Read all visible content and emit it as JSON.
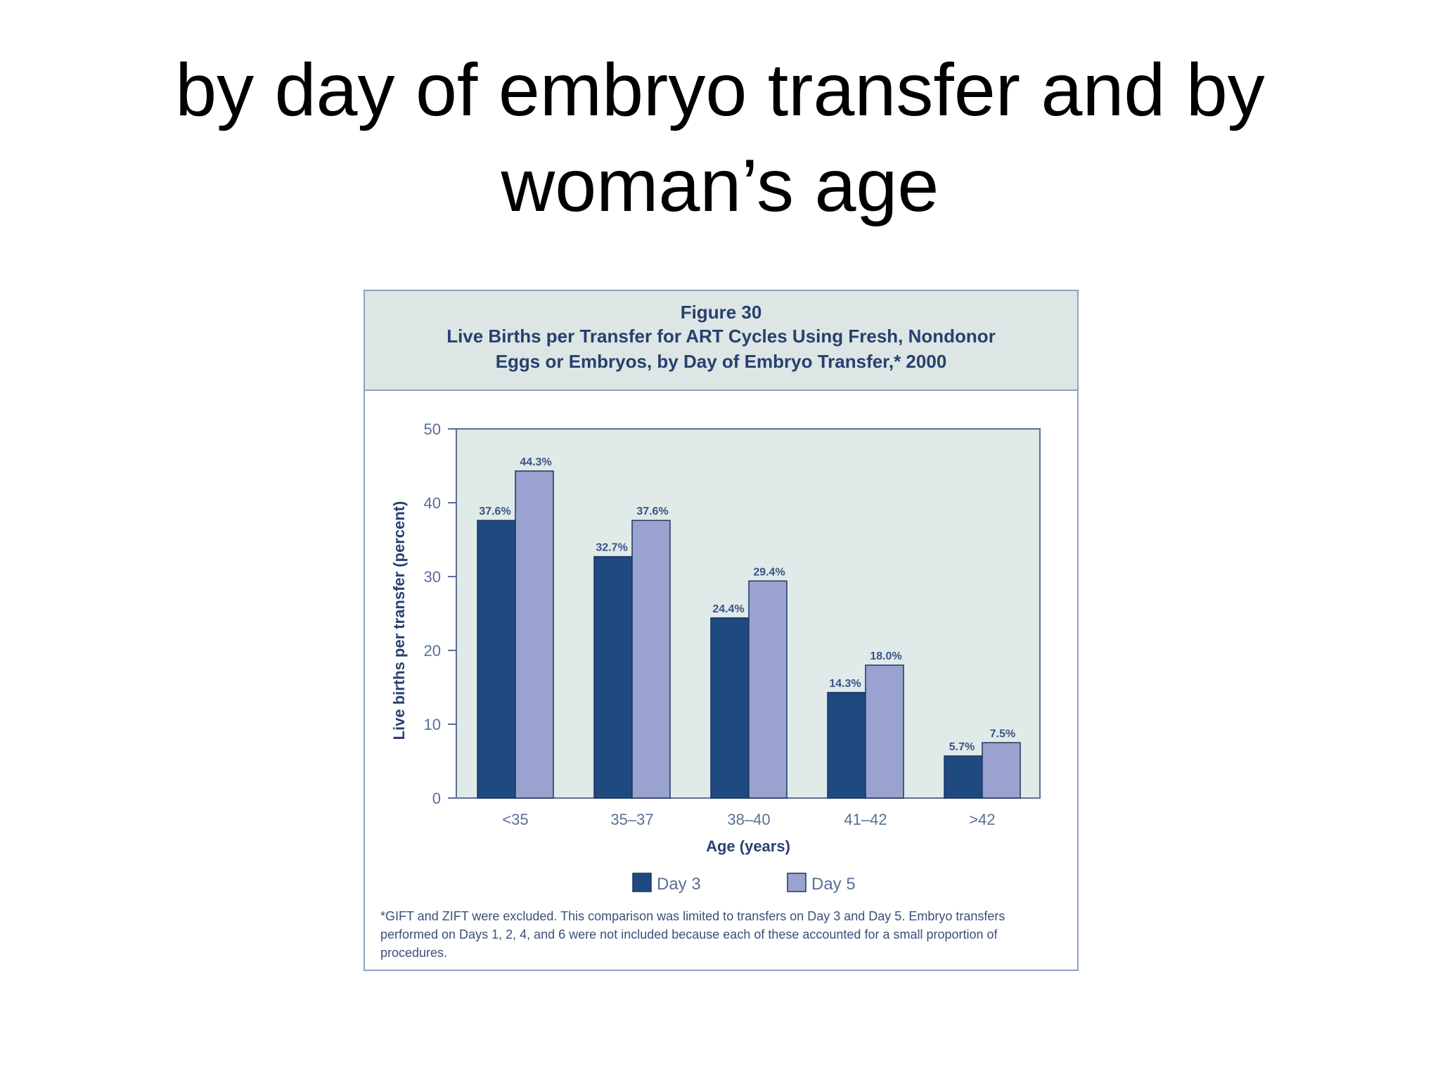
{
  "slide": {
    "title_line1": "by day of embryo transfer and by",
    "title_line2": "woman’s age"
  },
  "figure": {
    "number": "Figure 30",
    "caption_line1": "Live Births per Transfer for ART Cycles Using Fresh, Nondonor",
    "caption_line2": "Eggs or Embryos, by Day of Embryo Transfer,* 2000",
    "footnote": "*GIFT and ZIFT were excluded. This comparison was limited to transfers on Day 3 and Day 5. Embryo transfers performed on Days 1, 2, 4, and 6 were not included because each of these accounted for a small proportion of procedures."
  },
  "colors": {
    "day3": "#1e4a80",
    "day5": "#9aa3cf",
    "plot_bg": "#e0eae8",
    "axis": "#5a6f96"
  },
  "chart_data": {
    "type": "bar",
    "title": "",
    "xlabel": "Age (years)",
    "ylabel": "Live births per transfer (percent)",
    "ylim": [
      0,
      50
    ],
    "yticks": [
      "0",
      "10",
      "20",
      "30",
      "40",
      "50"
    ],
    "categories": [
      "<35",
      "35–37",
      "38–40",
      "41–42",
      ">42"
    ],
    "series": [
      {
        "name": "Day 3",
        "values": [
          37.6,
          32.7,
          24.4,
          14.3,
          5.7
        ],
        "labels": [
          "37.6%",
          "32.7%",
          "24.4%",
          "14.3%",
          "5.7%"
        ]
      },
      {
        "name": "Day 5",
        "values": [
          44.3,
          37.6,
          29.4,
          18.0,
          7.5
        ],
        "labels": [
          "44.3%",
          "37.6%",
          "29.4%",
          "18.0%",
          "7.5%"
        ]
      }
    ],
    "legend": "bottom",
    "grid": false
  }
}
